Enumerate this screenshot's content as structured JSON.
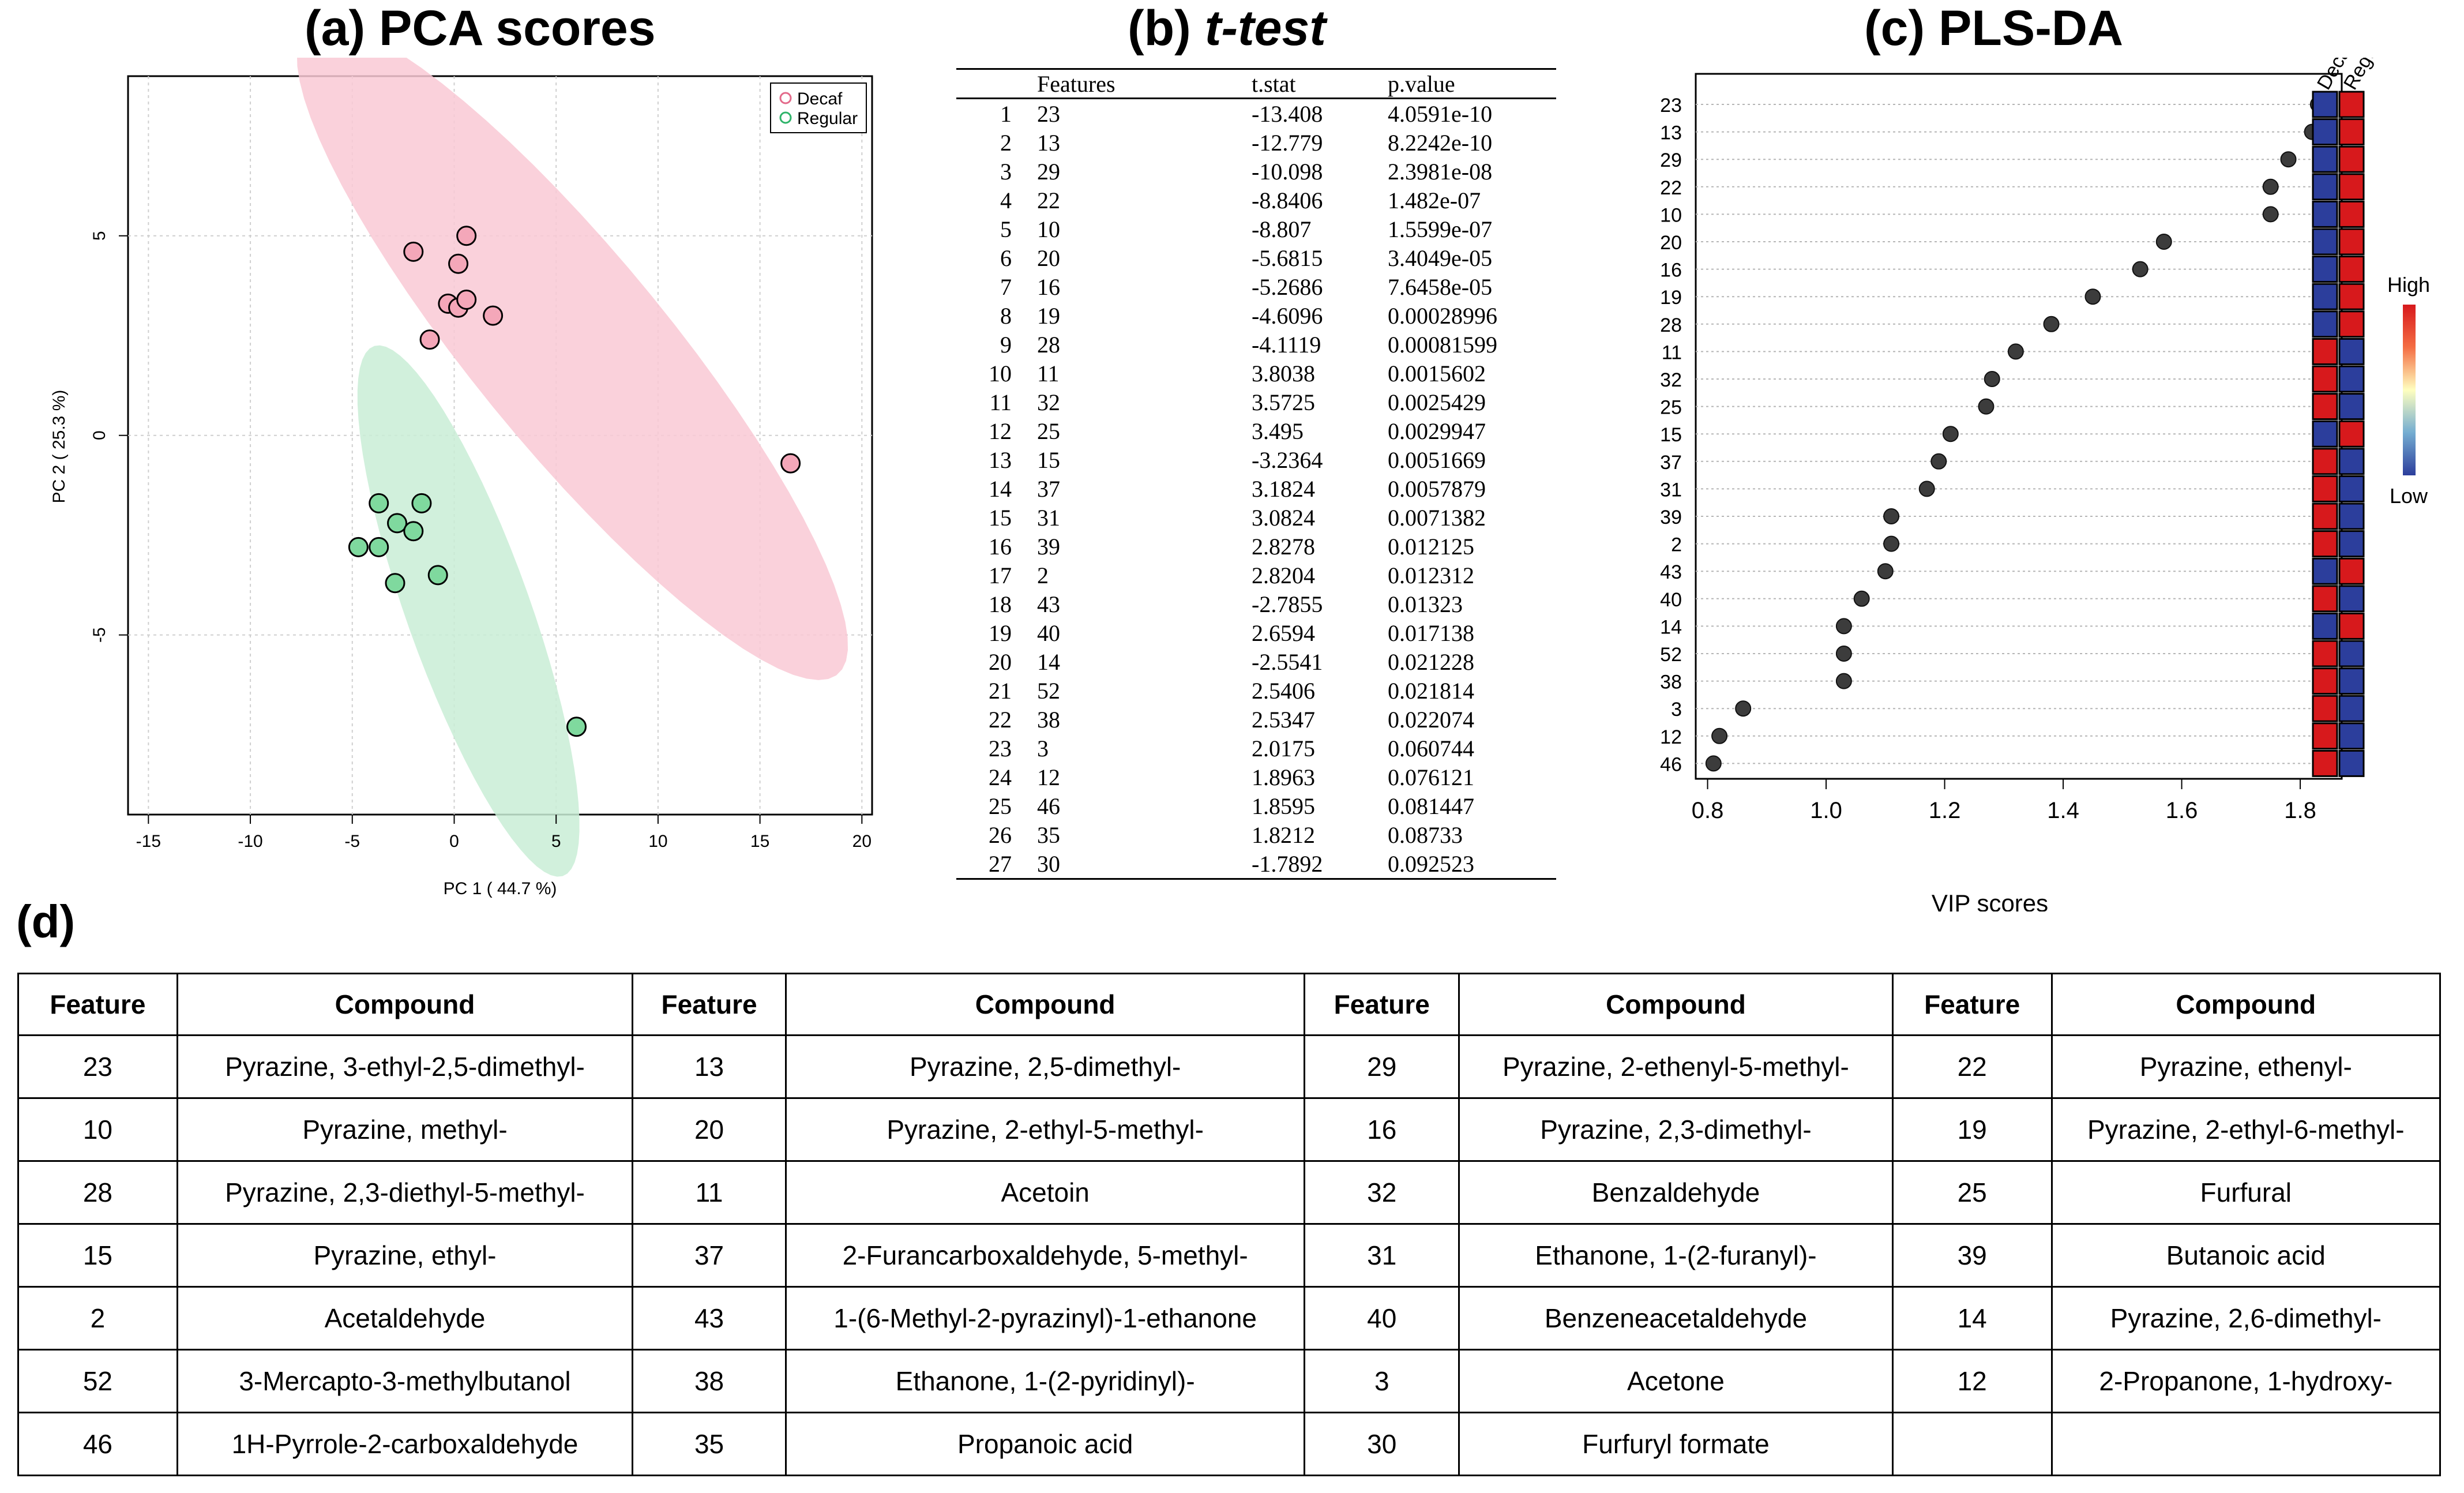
{
  "panels": {
    "a_title": "(a) PCA scores",
    "b_title": "t-test",
    "b_prefix": "(b) ",
    "c_title": "(c) PLS-DA",
    "d_title": "(d)"
  },
  "colors": {
    "decaf": "#f4a7b9",
    "regular": "#7fd99e",
    "decaf_ellipse": "#f9c9d5",
    "regular_ellipse": "#c9edd6",
    "high": "#d7191c",
    "low": "#2c3e9c"
  },
  "chart_data": [
    {
      "type": "scatter",
      "title": "(a) PCA scores",
      "xlabel": "PC 1 ( 44.7 %)",
      "ylabel": "PC 2 ( 25.3 %)",
      "xlim": [
        -16,
        20.5
      ],
      "ylim": [
        -9.5,
        9
      ],
      "xticks": [
        -15,
        -10,
        -5,
        0,
        5,
        10,
        15,
        20
      ],
      "yticks": [
        -5,
        0,
        5
      ],
      "legend": [
        "Decaf",
        "Regular"
      ],
      "legend_position": "top-right",
      "series": [
        {
          "name": "Decaf",
          "points": [
            [
              -2.0,
              4.6
            ],
            [
              0.6,
              5.0
            ],
            [
              0.2,
              4.3
            ],
            [
              -0.3,
              3.3
            ],
            [
              0.2,
              3.2
            ],
            [
              0.6,
              3.4
            ],
            [
              -1.2,
              2.4
            ],
            [
              1.9,
              3.0
            ],
            [
              16.5,
              -0.7
            ]
          ]
        },
        {
          "name": "Regular",
          "points": [
            [
              -3.7,
              -1.7
            ],
            [
              -1.6,
              -1.7
            ],
            [
              -2.8,
              -2.2
            ],
            [
              -2.0,
              -2.4
            ],
            [
              -4.7,
              -2.8
            ],
            [
              -3.7,
              -2.8
            ],
            [
              -0.8,
              -3.5
            ],
            [
              -2.9,
              -3.7
            ],
            [
              6.0,
              -7.3
            ]
          ]
        }
      ],
      "ellipses": [
        {
          "name": "Decaf",
          "center": [
            5.8,
            2.1
          ],
          "semi_axes": [
            15.5,
            3.2
          ],
          "angle_deg": -30
        },
        {
          "name": "Regular",
          "center": [
            0.7,
            -4.4
          ],
          "semi_axes": [
            8.2,
            2.6
          ],
          "angle_deg": -52
        }
      ]
    },
    {
      "type": "table",
      "title": "(b) t-test",
      "columns": [
        "",
        "Features",
        "t.stat",
        "p.value"
      ],
      "rows": [
        [
          "1",
          "23",
          "-13.408",
          "4.0591e-10"
        ],
        [
          "2",
          "13",
          "-12.779",
          "8.2242e-10"
        ],
        [
          "3",
          "29",
          "-10.098",
          "2.3981e-08"
        ],
        [
          "4",
          "22",
          "-8.8406",
          "1.482e-07"
        ],
        [
          "5",
          "10",
          "-8.807",
          "1.5599e-07"
        ],
        [
          "6",
          "20",
          "-5.6815",
          "3.4049e-05"
        ],
        [
          "7",
          "16",
          "-5.2686",
          "7.6458e-05"
        ],
        [
          "8",
          "19",
          "-4.6096",
          "0.00028996"
        ],
        [
          "9",
          "28",
          "-4.1119",
          "0.00081599"
        ],
        [
          "10",
          "11",
          "3.8038",
          "0.0015602"
        ],
        [
          "11",
          "32",
          "3.5725",
          "0.0025429"
        ],
        [
          "12",
          "25",
          "3.495",
          "0.0029947"
        ],
        [
          "13",
          "15",
          "-3.2364",
          "0.0051669"
        ],
        [
          "14",
          "37",
          "3.1824",
          "0.0057879"
        ],
        [
          "15",
          "31",
          "3.0824",
          "0.0071382"
        ],
        [
          "16",
          "39",
          "2.8278",
          "0.012125"
        ],
        [
          "17",
          "2",
          "2.8204",
          "0.012312"
        ],
        [
          "18",
          "43",
          "-2.7855",
          "0.01323"
        ],
        [
          "19",
          "40",
          "2.6594",
          "0.017138"
        ],
        [
          "20",
          "14",
          "-2.5541",
          "0.021228"
        ],
        [
          "21",
          "52",
          "2.5406",
          "0.021814"
        ],
        [
          "22",
          "38",
          "2.5347",
          "0.022074"
        ],
        [
          "23",
          "3",
          "2.0175",
          "0.060744"
        ],
        [
          "24",
          "12",
          "1.8963",
          "0.076121"
        ],
        [
          "25",
          "46",
          "1.8595",
          "0.081447"
        ],
        [
          "26",
          "35",
          "1.8212",
          "0.08733"
        ],
        [
          "27",
          "30",
          "-1.7892",
          "0.092523"
        ]
      ]
    },
    {
      "type": "scatter",
      "title": "(c) PLS-DA",
      "xlabel": "VIP scores",
      "xlim": [
        0.78,
        1.87
      ],
      "xticks": [
        0.8,
        1.0,
        1.2,
        1.4,
        1.6,
        1.8
      ],
      "xtick_labels": [
        "0.8",
        "1.0",
        "1.2",
        "1.4",
        "1.6",
        "1.8"
      ],
      "heatmap_columns": [
        "Decaf",
        "Regular"
      ],
      "colorbar_labels": [
        "High",
        "Low"
      ],
      "features": [
        {
          "label": "23",
          "vip": 1.83,
          "decaf": "low",
          "regular": "high"
        },
        {
          "label": "13",
          "vip": 1.82,
          "decaf": "low",
          "regular": "high"
        },
        {
          "label": "29",
          "vip": 1.78,
          "decaf": "low",
          "regular": "high"
        },
        {
          "label": "22",
          "vip": 1.75,
          "decaf": "low",
          "regular": "high"
        },
        {
          "label": "10",
          "vip": 1.75,
          "decaf": "low",
          "regular": "high"
        },
        {
          "label": "20",
          "vip": 1.57,
          "decaf": "low",
          "regular": "high"
        },
        {
          "label": "16",
          "vip": 1.53,
          "decaf": "low",
          "regular": "high"
        },
        {
          "label": "19",
          "vip": 1.45,
          "decaf": "low",
          "regular": "high"
        },
        {
          "label": "28",
          "vip": 1.38,
          "decaf": "low",
          "regular": "high"
        },
        {
          "label": "11",
          "vip": 1.32,
          "decaf": "high",
          "regular": "low"
        },
        {
          "label": "32",
          "vip": 1.28,
          "decaf": "high",
          "regular": "low"
        },
        {
          "label": "25",
          "vip": 1.27,
          "decaf": "high",
          "regular": "low"
        },
        {
          "label": "15",
          "vip": 1.21,
          "decaf": "low",
          "regular": "high"
        },
        {
          "label": "37",
          "vip": 1.19,
          "decaf": "high",
          "regular": "low"
        },
        {
          "label": "31",
          "vip": 1.17,
          "decaf": "high",
          "regular": "low"
        },
        {
          "label": "39",
          "vip": 1.11,
          "decaf": "high",
          "regular": "low"
        },
        {
          "label": "2",
          "vip": 1.11,
          "decaf": "high",
          "regular": "low"
        },
        {
          "label": "43",
          "vip": 1.1,
          "decaf": "low",
          "regular": "high"
        },
        {
          "label": "40",
          "vip": 1.06,
          "decaf": "high",
          "regular": "low"
        },
        {
          "label": "14",
          "vip": 1.03,
          "decaf": "low",
          "regular": "high"
        },
        {
          "label": "52",
          "vip": 1.03,
          "decaf": "high",
          "regular": "low"
        },
        {
          "label": "38",
          "vip": 1.03,
          "decaf": "high",
          "regular": "low"
        },
        {
          "label": "3",
          "vip": 0.86,
          "decaf": "high",
          "regular": "low"
        },
        {
          "label": "12",
          "vip": 0.82,
          "decaf": "high",
          "regular": "low"
        },
        {
          "label": "46",
          "vip": 0.81,
          "decaf": "high",
          "regular": "low"
        }
      ]
    },
    {
      "type": "table",
      "title": "(d)",
      "columns": [
        "Feature",
        "Compound",
        "Feature",
        "Compound",
        "Feature",
        "Compound",
        "Feature",
        "Compound"
      ],
      "rows": [
        [
          "23",
          "Pyrazine, 3-ethyl-2,5-dimethyl-",
          "13",
          "Pyrazine, 2,5-dimethyl-",
          "29",
          "Pyrazine, 2-ethenyl-5-methyl-",
          "22",
          "Pyrazine, ethenyl-"
        ],
        [
          "10",
          "Pyrazine, methyl-",
          "20",
          "Pyrazine, 2-ethyl-5-methyl-",
          "16",
          "Pyrazine, 2,3-dimethyl-",
          "19",
          "Pyrazine, 2-ethyl-6-methyl-"
        ],
        [
          "28",
          "Pyrazine, 2,3-diethyl-5-methyl-",
          "11",
          "Acetoin",
          "32",
          "Benzaldehyde",
          "25",
          "Furfural"
        ],
        [
          "15",
          "Pyrazine, ethyl-",
          "37",
          "2-Furancarboxaldehyde, 5-methyl-",
          "31",
          "Ethanone, 1-(2-furanyl)-",
          "39",
          "Butanoic acid"
        ],
        [
          "2",
          "Acetaldehyde",
          "43",
          "1-(6-Methyl-2-pyrazinyl)-1-ethanone",
          "40",
          "Benzeneacetaldehyde",
          "14",
          "Pyrazine, 2,6-dimethyl-"
        ],
        [
          "52",
          "3-Mercapto-3-methylbutanol",
          "38",
          "Ethanone, 1-(2-pyridinyl)-",
          "3",
          "Acetone",
          "12",
          "2-Propanone, 1-hydroxy-"
        ],
        [
          "46",
          "1H-Pyrrole-2-carboxaldehyde",
          "35",
          "Propanoic acid",
          "30",
          "Furfuryl formate",
          "",
          ""
        ]
      ]
    }
  ]
}
